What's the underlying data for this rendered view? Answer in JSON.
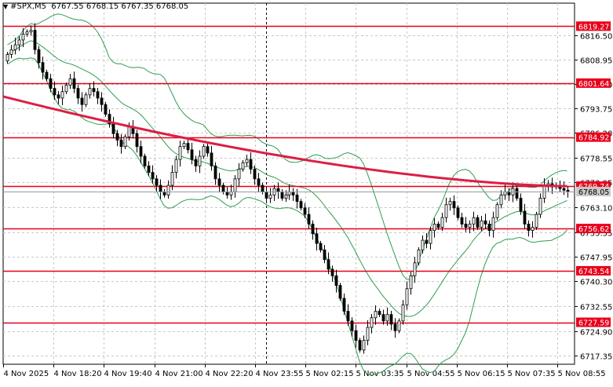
{
  "header": {
    "symbol": "#SPX,M5",
    "ohlc": "6767.55 6768.15 6767.35 6768.05"
  },
  "chart_data": {
    "type": "candlestick",
    "title": "#SPX,M5",
    "ylim": [
      6714.6,
      6826.4
    ],
    "y_ticks": [
      6816.5,
      6808.95,
      6801.4,
      6793.75,
      6786.2,
      6778.55,
      6770.95,
      6763.1,
      6755.55,
      6747.95,
      6740.3,
      6732.55,
      6724.9,
      6717.35
    ],
    "x_tick_labels": [
      "4 Nov 2025",
      "4 Nov 18:20",
      "4 Nov 19:40",
      "4 Nov 21:00",
      "4 Nov 22:20",
      "4 Nov 23:55",
      "5 Nov 02:15",
      "5 Nov 03:35",
      "5 Nov 04:55",
      "5 Nov 06:15",
      "5 Nov 07:35",
      "5 Nov 08:55"
    ],
    "levels": [
      6819.27,
      6801.64,
      6784.92,
      6769.74,
      6768.05,
      6756.62,
      6743.54,
      6727.59
    ],
    "level_labels": [
      "6819.27",
      "6801.64",
      "6784.92",
      "6769.74",
      "6768.05",
      "6756.62",
      "6743.54",
      "6727.59"
    ],
    "current_price": 6768.05,
    "session_break_index": 66,
    "closes": [
      6810.5,
      6812.0,
      6813.5,
      6815.0,
      6816.8,
      6817.5,
      6818.0,
      6812.0,
      6808.0,
      6805.0,
      6803.0,
      6800.0,
      6798.0,
      6797.0,
      6799.0,
      6801.0,
      6803.0,
      6800.0,
      6797.0,
      6795.0,
      6798.0,
      6800.0,
      6799.0,
      6797.0,
      6795.0,
      6792.0,
      6789.0,
      6786.0,
      6784.0,
      6782.0,
      6785.0,
      6788.0,
      6786.0,
      6782.0,
      6779.0,
      6776.0,
      6774.0,
      6772.0,
      6770.0,
      6768.0,
      6767.0,
      6770.0,
      6774.0,
      6778.0,
      6782.0,
      6783.0,
      6781.0,
      6778.0,
      6776.0,
      6779.0,
      6782.0,
      6780.0,
      6776.0,
      6772.0,
      6770.0,
      6768.0,
      6767.0,
      6768.0,
      6772.0,
      6775.0,
      6777.0,
      6778.0,
      6775.0,
      6772.0,
      6770.0,
      6768.0,
      6766.0,
      6767.0,
      6769.0,
      6768.0,
      6766.0,
      6767.0,
      6768.0,
      6767.0,
      6765.0,
      6763.0,
      6761.0,
      6758.0,
      6755.0,
      6752.0,
      6750.0,
      6747.0,
      6744.0,
      6742.0,
      6739.0,
      6735.0,
      6731.0,
      6728.0,
      6725.0,
      6722.0,
      6719.0,
      6722.0,
      6726.0,
      6729.0,
      6731.0,
      6730.0,
      6728.0,
      6730.0,
      6727.0,
      6725.0,
      6728.0,
      6733.0,
      6738.0,
      6742.0,
      6746.0,
      6750.0,
      6753.0,
      6752.0,
      6756.0,
      6758.0,
      6757.0,
      6760.0,
      6764.0,
      6765.0,
      6763.0,
      6760.0,
      6758.0,
      6757.0,
      6758.0,
      6760.0,
      6757.0,
      6759.0,
      6758.0,
      6756.0,
      6760.0,
      6764.0,
      6767.0,
      6768.0,
      6767.0,
      6769.0,
      6766.0,
      6762.0,
      6758.0,
      6756.0,
      6757.0,
      6761.0,
      6766.0,
      6770.0,
      6770.5,
      6769.5,
      6770.0,
      6769.0,
      6768.5,
      6768.05
    ],
    "ma_start": 6797.5,
    "ma_end": 6769.74,
    "bollinger_period": 20,
    "bollinger_width": 2.0,
    "colors": {
      "grid": "#c8c8c8",
      "level": "#e8001a",
      "ma": "#dc1e46",
      "bands": "#2e9e4e",
      "candle": "#000000",
      "label_text": "#ffffff",
      "session_line": "#000000"
    }
  }
}
